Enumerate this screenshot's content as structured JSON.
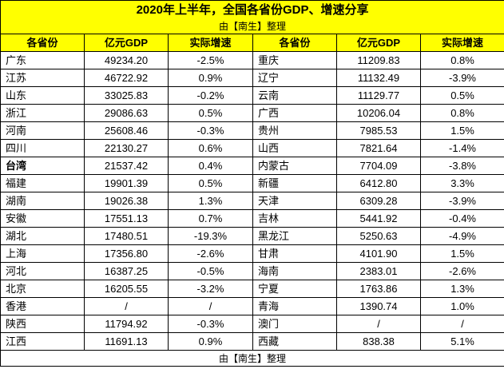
{
  "title": "2020年上半年，全国各省份GDP、增速分享",
  "subtitle": "由【南生】整理",
  "footer": "由【南生】整理",
  "headers": [
    "各省份",
    "亿元GDP",
    "实际增速",
    "各省份",
    "亿元GDP",
    "实际增速"
  ],
  "rows": [
    {
      "left": {
        "name": "广东",
        "gdp": "49234.20",
        "growth": "-2.5%"
      },
      "right": {
        "name": "重庆",
        "gdp": "11209.83",
        "growth": "0.8%"
      }
    },
    {
      "left": {
        "name": "江苏",
        "gdp": "46722.92",
        "growth": "0.9%"
      },
      "right": {
        "name": "辽宁",
        "gdp": "11132.49",
        "growth": "-3.9%"
      }
    },
    {
      "left": {
        "name": "山东",
        "gdp": "33025.83",
        "growth": "-0.2%"
      },
      "right": {
        "name": "云南",
        "gdp": "11129.77",
        "growth": "0.5%"
      }
    },
    {
      "left": {
        "name": "浙江",
        "gdp": "29086.63",
        "growth": "0.5%"
      },
      "right": {
        "name": "广西",
        "gdp": "10206.04",
        "growth": "0.8%"
      }
    },
    {
      "left": {
        "name": "河南",
        "gdp": "25608.46",
        "growth": "-0.3%"
      },
      "right": {
        "name": "贵州",
        "gdp": "7985.53",
        "growth": "1.5%"
      }
    },
    {
      "left": {
        "name": "四川",
        "gdp": "22130.27",
        "growth": "0.6%"
      },
      "right": {
        "name": "山西",
        "gdp": "7821.64",
        "growth": "-1.4%"
      }
    },
    {
      "left": {
        "name": "台湾",
        "gdp": "21537.42",
        "growth": "0.4%",
        "bold": true
      },
      "right": {
        "name": "内蒙古",
        "gdp": "7704.09",
        "growth": "-3.8%"
      }
    },
    {
      "left": {
        "name": "福建",
        "gdp": "19901.39",
        "growth": "0.5%"
      },
      "right": {
        "name": "新疆",
        "gdp": "6412.80",
        "growth": "3.3%"
      }
    },
    {
      "left": {
        "name": "湖南",
        "gdp": "19026.38",
        "growth": "1.3%"
      },
      "right": {
        "name": "天津",
        "gdp": "6309.28",
        "growth": "-3.9%"
      }
    },
    {
      "left": {
        "name": "安徽",
        "gdp": "17551.13",
        "growth": "0.7%"
      },
      "right": {
        "name": "吉林",
        "gdp": "5441.92",
        "growth": "-0.4%"
      }
    },
    {
      "left": {
        "name": "湖北",
        "gdp": "17480.51",
        "growth": "-19.3%"
      },
      "right": {
        "name": "黑龙江",
        "gdp": "5250.63",
        "growth": "-4.9%"
      }
    },
    {
      "left": {
        "name": "上海",
        "gdp": "17356.80",
        "growth": "-2.6%"
      },
      "right": {
        "name": "甘肃",
        "gdp": "4101.90",
        "growth": "1.5%"
      }
    },
    {
      "left": {
        "name": "河北",
        "gdp": "16387.25",
        "growth": "-0.5%"
      },
      "right": {
        "name": "海南",
        "gdp": "2383.01",
        "growth": "-2.6%"
      }
    },
    {
      "left": {
        "name": "北京",
        "gdp": "16205.55",
        "growth": "-3.2%"
      },
      "right": {
        "name": "宁夏",
        "gdp": "1763.86",
        "growth": "1.3%"
      }
    },
    {
      "left": {
        "name": "香港",
        "gdp": "/",
        "growth": "/"
      },
      "right": {
        "name": "青海",
        "gdp": "1390.74",
        "growth": "1.0%"
      }
    },
    {
      "left": {
        "name": "陕西",
        "gdp": "11794.92",
        "growth": "-0.3%"
      },
      "right": {
        "name": "澳门",
        "gdp": "/",
        "growth": "/"
      }
    },
    {
      "left": {
        "name": "江西",
        "gdp": "11691.13",
        "growth": "0.9%"
      },
      "right": {
        "name": "西藏",
        "gdp": "838.38",
        "growth": "5.1%"
      }
    }
  ],
  "colors": {
    "header_bg": "#ffff00",
    "border": "#000000",
    "body_bg": "#ffffff"
  }
}
